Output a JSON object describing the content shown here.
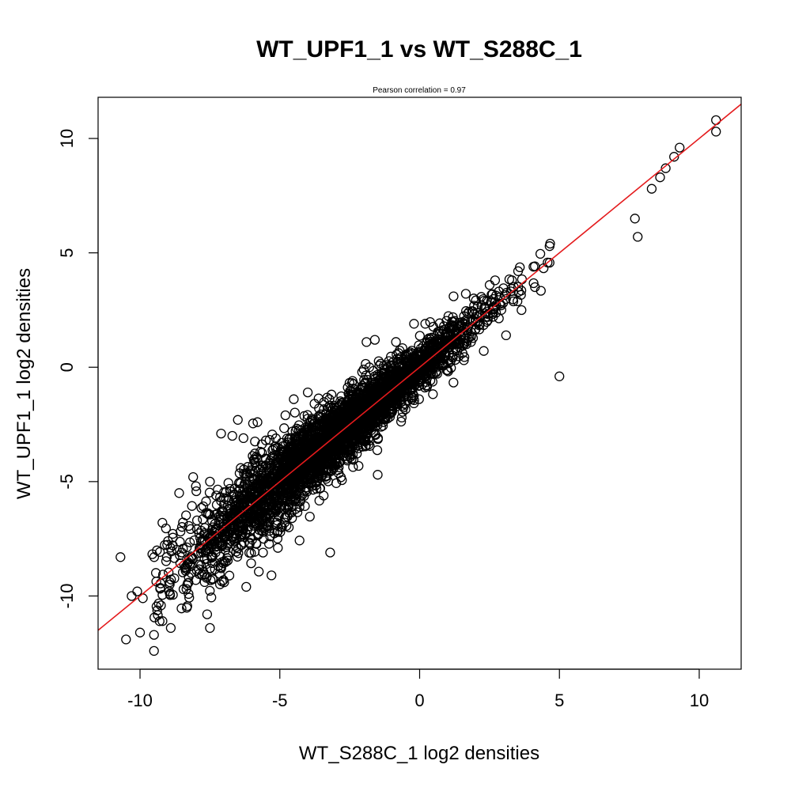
{
  "chart_data": {
    "type": "scatter",
    "title": "WT_UPF1_1 vs WT_S288C_1",
    "subtitle": "Pearson correlation =  0.97",
    "xlabel": "WT_S288C_1 log2 densities",
    "ylabel": "WT_UPF1_1 log2 densities",
    "xlim": [
      -11.5,
      11.5
    ],
    "ylim": [
      -13.2,
      11.8
    ],
    "xticks": [
      -10,
      -5,
      0,
      5,
      10
    ],
    "yticks": [
      -10,
      -5,
      0,
      5,
      10
    ],
    "xtick_labels": [
      "-10",
      "-5",
      "0",
      "5",
      "10"
    ],
    "ytick_labels": [
      "-10",
      "-5",
      "0",
      "5",
      "10"
    ],
    "grid": false,
    "colors": {
      "points": "#000000",
      "fit_line": "#e41a1c"
    },
    "fit_line": {
      "slope": 1.0,
      "intercept": 0.0
    },
    "marker": "open-circle",
    "points": [
      [
        -10.7,
        -8.3
      ],
      [
        -10.5,
        -11.9
      ],
      [
        -10.3,
        -10.0
      ],
      [
        -10.1,
        -9.8
      ],
      [
        -10.0,
        -11.6
      ],
      [
        -9.9,
        -10.1
      ],
      [
        -9.5,
        -12.4
      ],
      [
        -9.5,
        -11.7
      ],
      [
        -9.3,
        -11.1
      ],
      [
        -9.2,
        -6.8
      ],
      [
        -9.0,
        -7.6
      ],
      [
        -8.9,
        -11.4
      ],
      [
        -8.6,
        -5.5
      ],
      [
        -8.1,
        -4.8
      ],
      [
        -8.0,
        -5.2
      ],
      [
        -7.6,
        -10.8
      ],
      [
        -7.5,
        -11.4
      ],
      [
        -7.5,
        -5.0
      ],
      [
        -7.1,
        -2.9
      ],
      [
        -6.7,
        -3.0
      ],
      [
        -6.5,
        -2.3
      ],
      [
        -6.3,
        -3.1
      ],
      [
        -6.2,
        -9.6
      ],
      [
        -5.8,
        -2.4
      ],
      [
        -5.5,
        -3.2
      ],
      [
        -5.3,
        -9.1
      ],
      [
        -4.8,
        -2.1
      ],
      [
        -4.5,
        -1.4
      ],
      [
        -4.0,
        -1.1
      ],
      [
        -3.6,
        -1.8
      ],
      [
        -3.2,
        -8.1
      ],
      [
        -2.5,
        -1.2
      ],
      [
        -2.4,
        -0.6
      ],
      [
        -2.0,
        -0.1
      ],
      [
        -1.9,
        1.1
      ],
      [
        -1.8,
        0.0
      ],
      [
        -1.6,
        1.2
      ],
      [
        -1.5,
        -4.7
      ],
      [
        -0.2,
        1.9
      ],
      [
        0.2,
        1.9
      ],
      [
        0.5,
        1.0
      ],
      [
        1.0,
        1.2
      ],
      [
        2.0,
        2.0
      ],
      [
        2.7,
        3.8
      ],
      [
        5.0,
        -0.4
      ],
      [
        7.7,
        6.5
      ],
      [
        7.8,
        5.7
      ],
      [
        8.3,
        7.8
      ],
      [
        8.6,
        8.3
      ],
      [
        8.8,
        8.7
      ],
      [
        9.1,
        9.2
      ],
      [
        9.3,
        9.6
      ],
      [
        10.6,
        10.8
      ],
      [
        10.6,
        10.3
      ]
    ]
  }
}
